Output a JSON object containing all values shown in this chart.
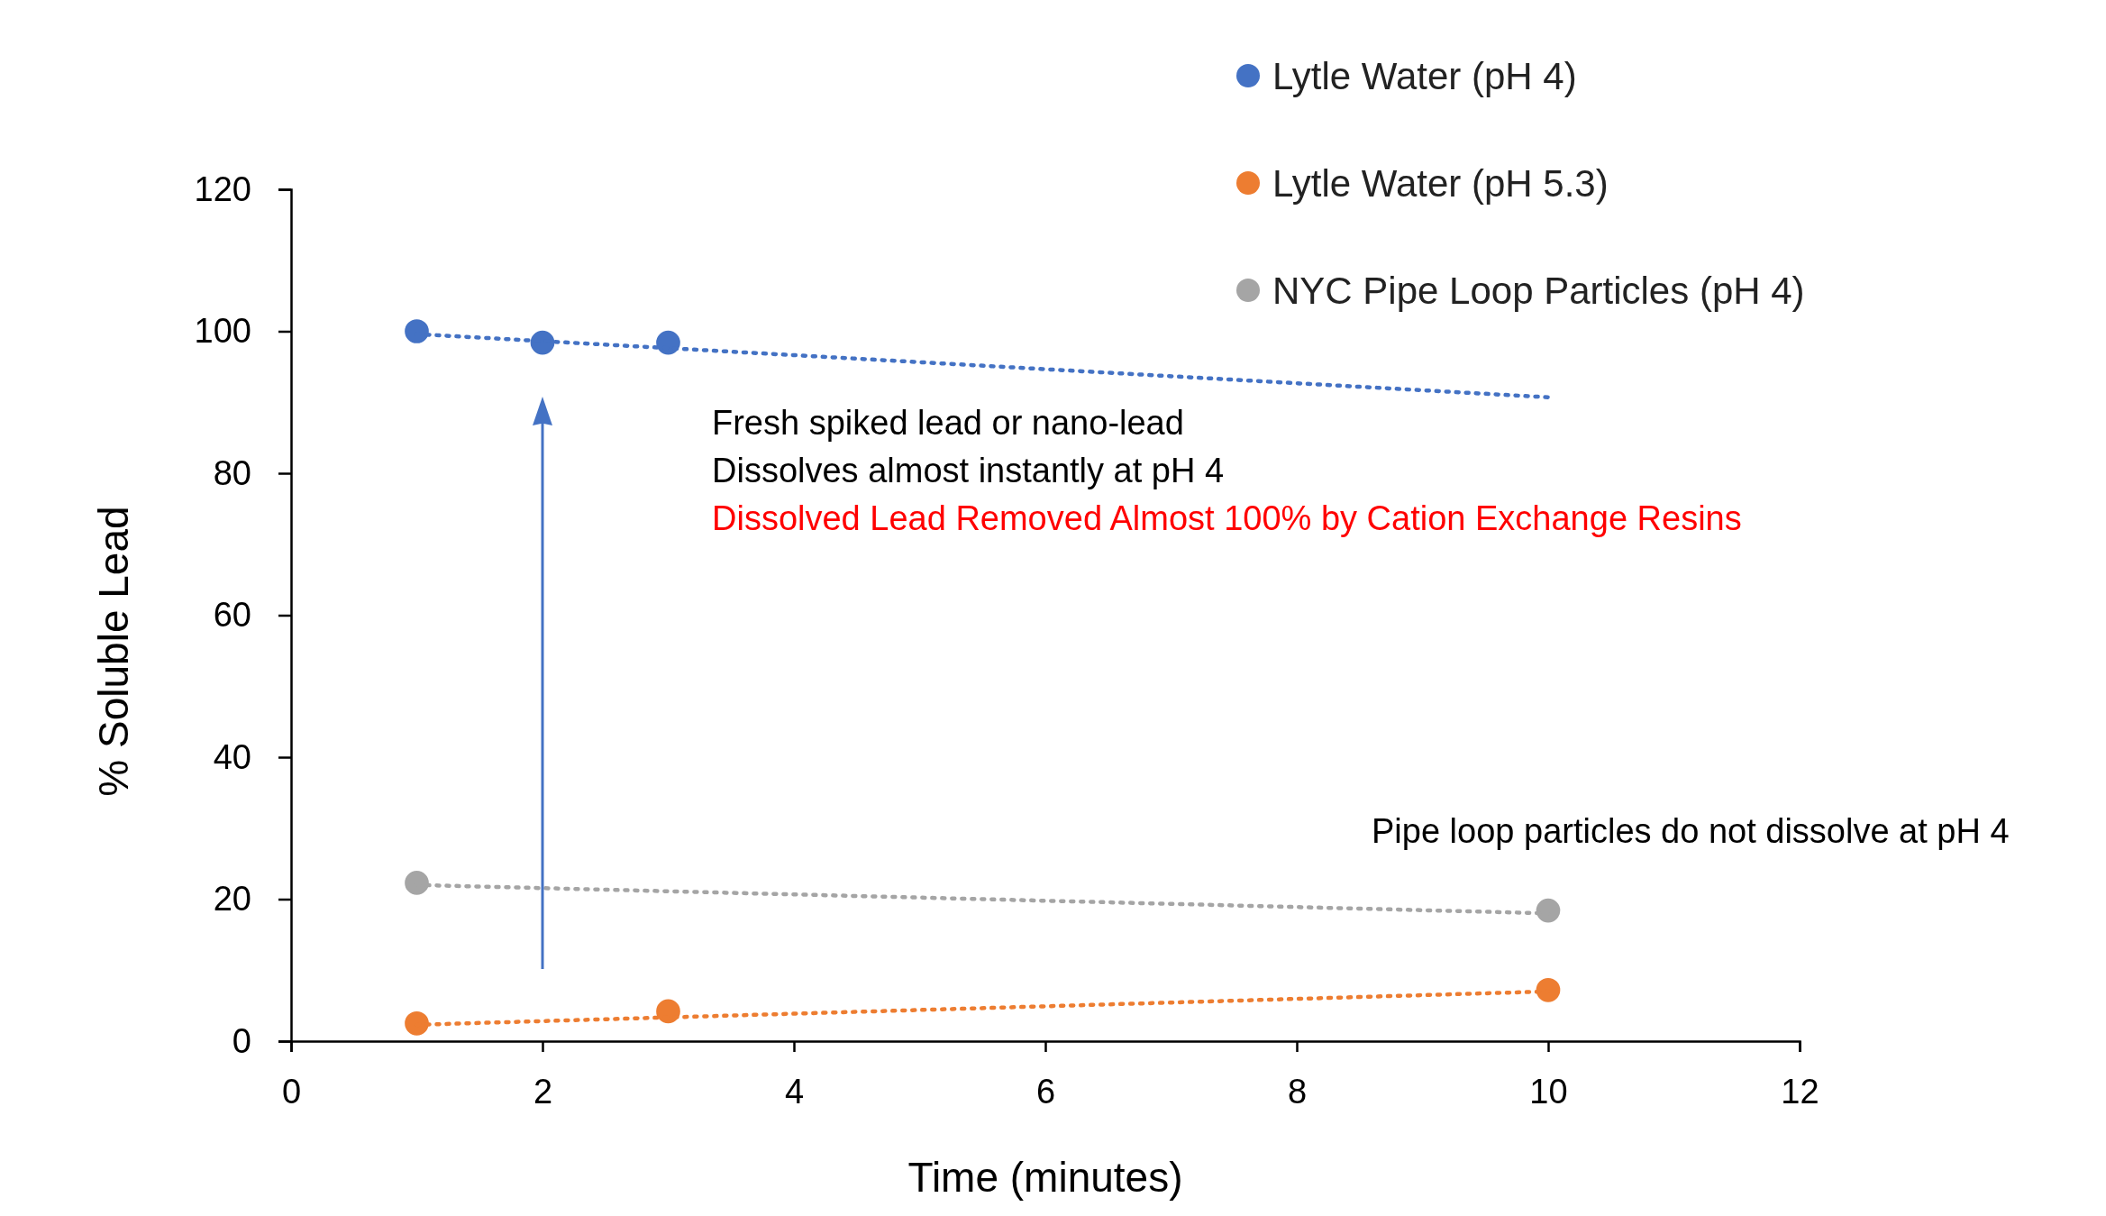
{
  "chart_data": {
    "type": "scatter",
    "xlabel": "Time (minutes)",
    "ylabel": "% Soluble Lead",
    "xlim": [
      0,
      12
    ],
    "xticks": [
      0,
      2,
      4,
      6,
      8,
      10,
      12
    ],
    "ylim": [
      0,
      120
    ],
    "yticks": [
      0,
      20,
      40,
      60,
      80,
      100,
      120
    ],
    "grid": false,
    "legend": "top right",
    "marker": "circle",
    "series": [
      {
        "name": "Lytle Water (pH 4)",
        "color": "#4472c4",
        "x": [
          1,
          2,
          3
        ],
        "values": [
          100,
          98.4,
          98.4
        ]
      },
      {
        "name": "Lytle Water (pH 5.3)",
        "color": "#ed7d31",
        "x": [
          1,
          3,
          10
        ],
        "values": [
          2.5,
          4.2,
          7.2
        ]
      },
      {
        "name": "NYC Pipe Loop Particles (pH 4)",
        "color": "#a5a5a5",
        "x": [
          1,
          10
        ],
        "values": [
          22.3,
          18.4
        ]
      },
      {
        "type": "line",
        "color": "#4472c4",
        "line_style": "dotted",
        "marker": "none",
        "x": [
          1,
          10
        ],
        "values": [
          99.6,
          90.7
        ]
      },
      {
        "type": "line",
        "color": "#ed7d31",
        "line_style": "dotted",
        "marker": "none",
        "x": [
          1,
          10
        ],
        "values": [
          2.3,
          7.0
        ]
      },
      {
        "type": "line",
        "color": "#a5a5a5",
        "line_style": "dotted",
        "marker": "none",
        "x": [
          1,
          10
        ],
        "values": [
          22.0,
          18.0
        ]
      }
    ],
    "annotations": [
      "Fresh spiked lead or nano-lead",
      "Dissolves almost instantly at pH 4",
      "Dissolved Lead Removed Almost 100% by Cation Exchange Resins",
      "Pipe loop particles do not dissolve at pH 4"
    ]
  }
}
